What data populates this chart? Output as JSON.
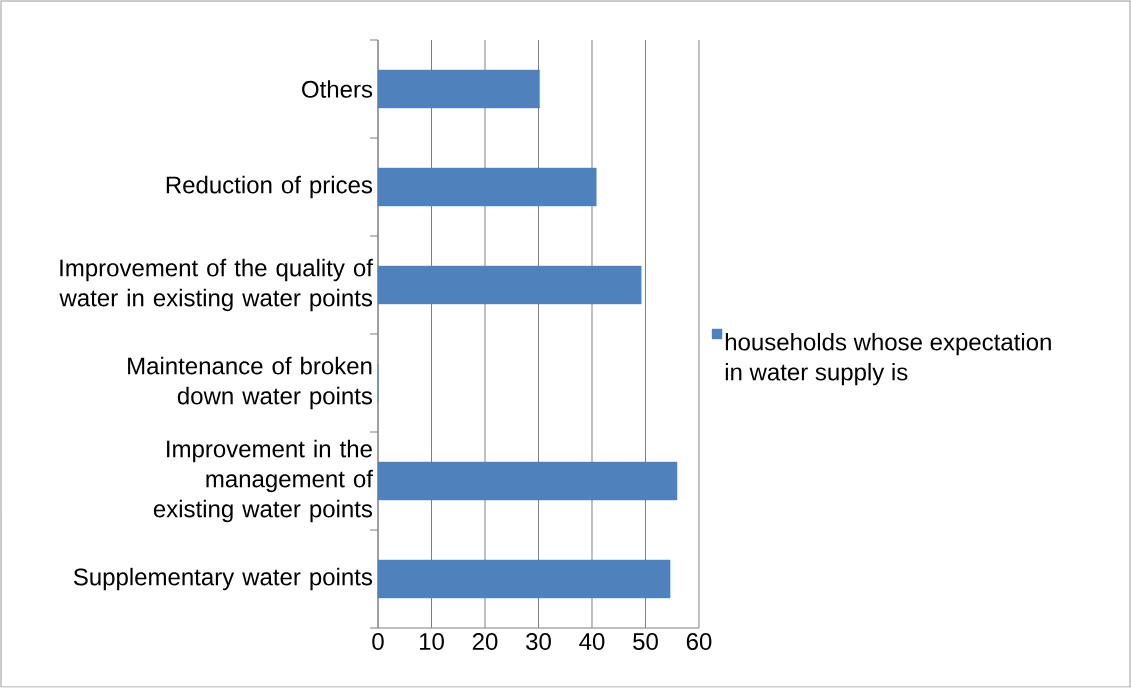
{
  "chart_data": {
    "type": "bar",
    "orientation": "horizontal",
    "categories": [
      "Others",
      "Reduction of prices",
      "Improvement of the quality of water in existing water points",
      "Maintenance of broken down water points",
      "Improvement in the management of existing water points",
      "Supplementary water points"
    ],
    "series": [
      {
        "name": "households whose expectation in water supply is",
        "color": "#4f81bd",
        "values": [
          30.2,
          40.8,
          49.2,
          0,
          55.9,
          54.6
        ]
      }
    ],
    "xlim": [
      0,
      60
    ],
    "xticks": [
      0,
      10,
      20,
      30,
      40,
      50,
      60
    ],
    "grid": "x",
    "legend": "right"
  }
}
